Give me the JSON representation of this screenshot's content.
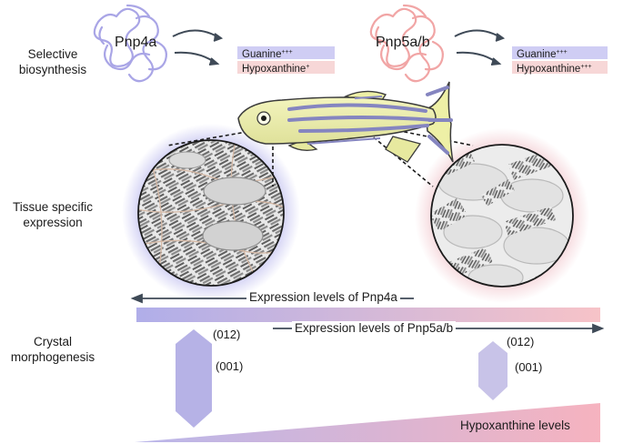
{
  "rows": {
    "row1": [
      "Selective",
      "biosynthesis"
    ],
    "row2": [
      "Tissue specific",
      "expression"
    ],
    "row3": [
      "Crystal",
      "morphogenesis"
    ]
  },
  "enzymes": {
    "left": {
      "name": "Pnp4a",
      "guanine": "Guanine",
      "guanine_level": "+++",
      "hypoxanthine": "Hypoxanthine",
      "hypoxanthine_level": "+"
    },
    "right": {
      "name": "Pnp5a/b",
      "guanine": "Guanine",
      "guanine_level": "+++",
      "hypoxanthine": "Hypoxanthine",
      "hypoxanthine_level": "+++"
    }
  },
  "gradients": {
    "pnp4a_label": "Expression levels of Pnp4a",
    "pnp5_label": "Expression levels of Pnp5a/b",
    "hypoxanthine_label": "Hypoxanthine levels"
  },
  "crystals": {
    "left": {
      "top_facet": "(012)",
      "side_facet": "(001)"
    },
    "right": {
      "top_facet": "(012)",
      "side_facet": "(001)"
    }
  },
  "colors": {
    "purple": "#b3b1ea",
    "pink": "#f3b9b9",
    "fish_body": "#eef0a6",
    "stripe": "#8585c0",
    "arrow": "#3f4a57"
  }
}
